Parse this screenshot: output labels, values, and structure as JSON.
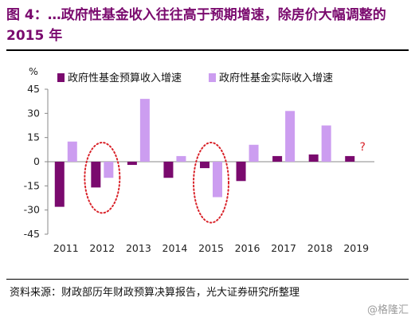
{
  "header": {
    "title": "图 4：…政府性基金收入往往高于预期增速，除房价大幅调整的 2015 年"
  },
  "footer": {
    "source": "资料来源：财政部历年财政预算决算报告，光大证券研究所整理",
    "watermark": "@格隆汇"
  },
  "chart_data": {
    "type": "bar",
    "title": "",
    "xlabel": "",
    "ylabel": "%",
    "ylim": [
      -45,
      45
    ],
    "yticks": [
      -45,
      -30,
      -15,
      0,
      15,
      30,
      45
    ],
    "categories": [
      "2011",
      "2012",
      "2013",
      "2014",
      "2015",
      "2016",
      "2017",
      "2018",
      "2019"
    ],
    "series": [
      {
        "name": "政府性基金预算收入增速",
        "color": "#7a0a6e",
        "values": [
          -28,
          -16,
          -2,
          -10,
          -4,
          -12,
          3.5,
          4.5,
          3.5
        ]
      },
      {
        "name": "政府性基金实际收入增速",
        "color": "#cc9df0",
        "values": [
          12.5,
          -10,
          39,
          3.5,
          -22,
          10.5,
          31.5,
          22.5,
          null
        ]
      }
    ],
    "legend_position": "top",
    "highlight_categories": [
      "2012",
      "2015"
    ],
    "annotations": [
      {
        "category": "2019",
        "text": "?"
      }
    ],
    "highlight_color": "#d9232a"
  }
}
